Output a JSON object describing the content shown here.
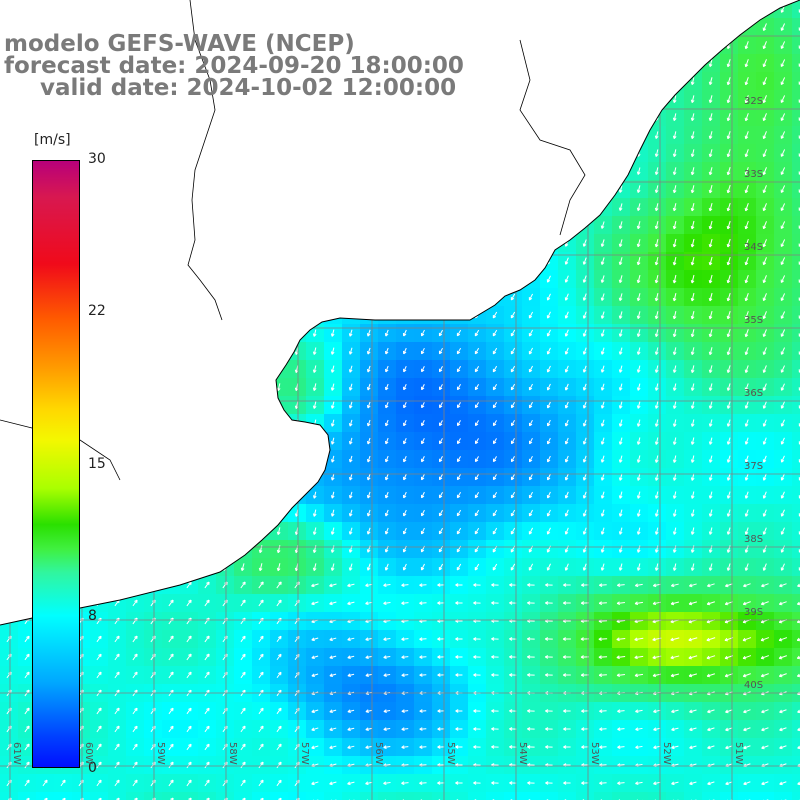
{
  "title": {
    "line1": "modelo GEFS-WAVE (NCEP)",
    "line2": "forecast date: 2024-09-20 18:00:00",
    "line3": "valid date: 2024-10-02 12:00:00"
  },
  "colorbar": {
    "unit": "[m/s]",
    "ticks": [
      "30",
      "22",
      "15",
      "8",
      "0"
    ],
    "tick_values": [
      30,
      22,
      15,
      8,
      0
    ],
    "range": [
      0,
      30
    ],
    "colors": [
      "#b8007a",
      "#f00a1a",
      "#ff9a00",
      "#f4f700",
      "#2ae000",
      "#00ffff",
      "#0010ff"
    ]
  },
  "grid": {
    "lon_labels": [
      "61W",
      "60W",
      "59W",
      "58W",
      "57W",
      "56W",
      "55W",
      "54W",
      "53W",
      "52W",
      "51W"
    ],
    "lat_labels": [
      "32S",
      "33S",
      "34S",
      "35S",
      "36S",
      "37S",
      "38S",
      "39S",
      "40S"
    ]
  },
  "colors": {
    "land": "#ffffff",
    "coastline": "#000000",
    "grid_line": "#808080",
    "title_text": "#7a7a7a",
    "arrow": "#ffffff"
  }
}
